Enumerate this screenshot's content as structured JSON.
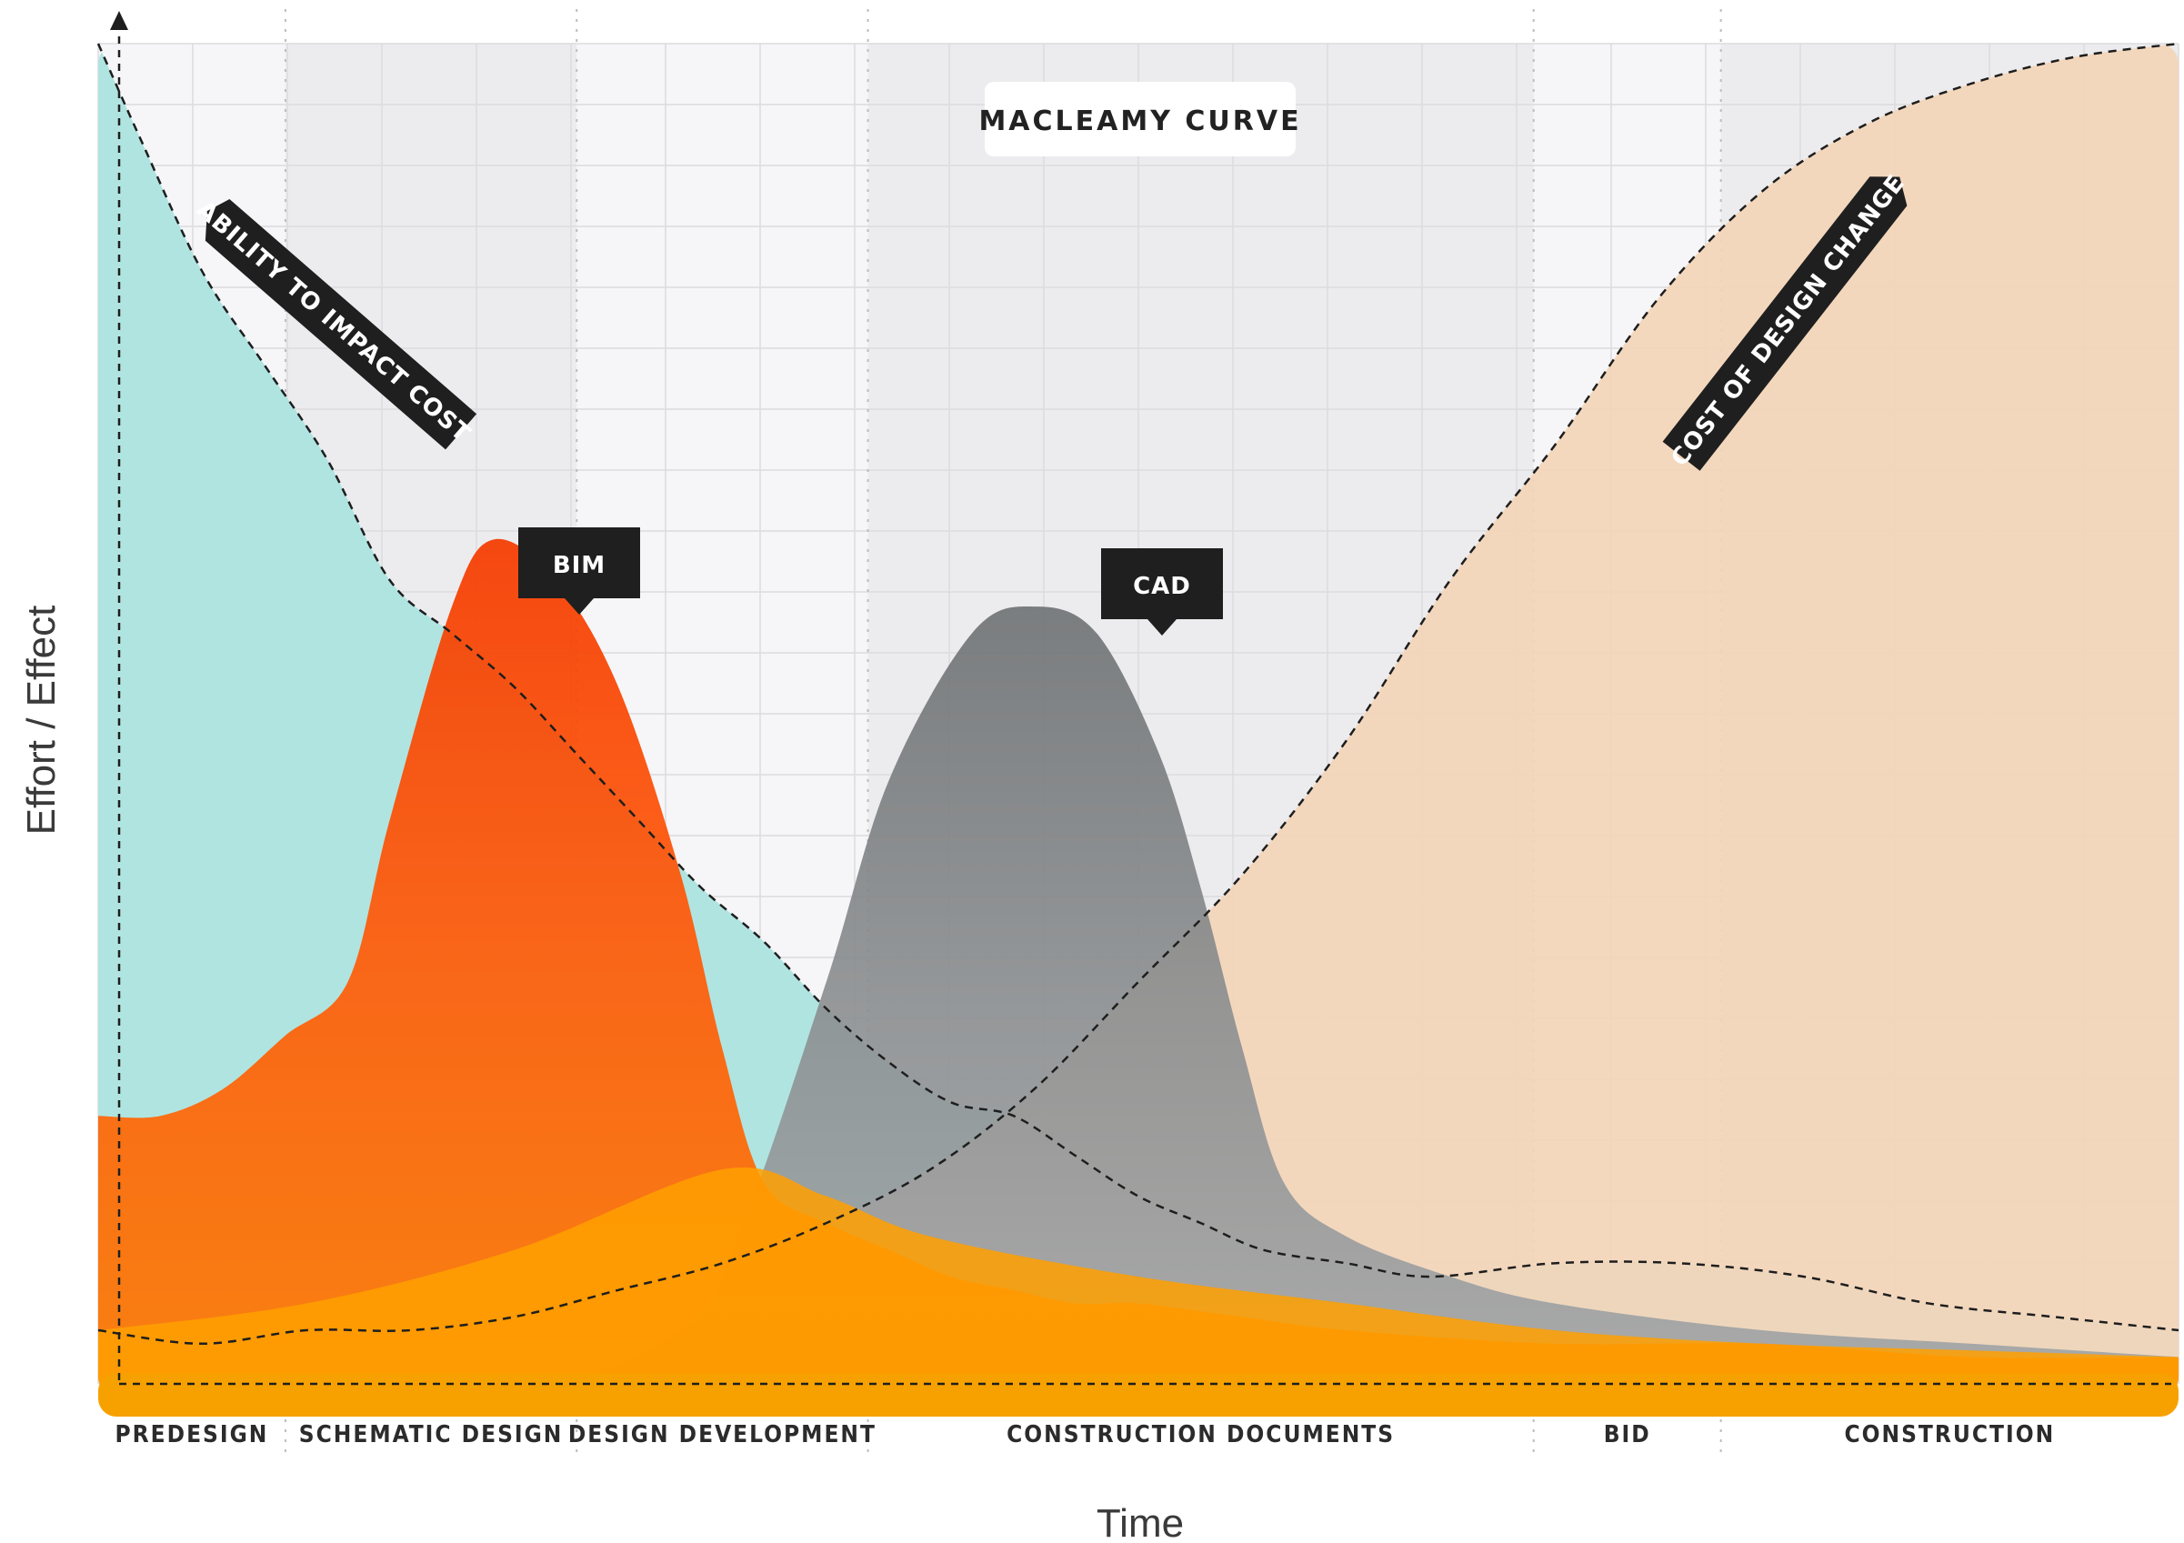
{
  "chart_data": {
    "type": "area",
    "title": "MACLEAMY CURVE",
    "xlabel": "Time",
    "ylabel": "Effort / Effect",
    "ylim": [
      0,
      100
    ],
    "phases": [
      "PREDESIGN",
      "SCHEMATIC DESIGN",
      "DESIGN DEVELOPMENT",
      "CONSTRUCTION DOCUMENTS",
      "BID",
      "CONSTRUCTION"
    ],
    "series": [
      {
        "name": "ABILITY TO IMPACT COST",
        "color": "#b0e4e1",
        "style": "dashed",
        "points": [
          [
            0,
            100
          ],
          [
            2,
            93
          ],
          [
            5,
            83
          ],
          [
            8,
            76
          ],
          [
            11,
            69
          ],
          [
            14,
            60
          ],
          [
            17,
            56
          ],
          [
            20,
            52
          ],
          [
            23,
            47
          ],
          [
            26,
            42
          ],
          [
            29,
            37
          ],
          [
            32,
            33
          ],
          [
            35,
            28
          ],
          [
            38,
            24
          ],
          [
            41,
            21
          ],
          [
            44,
            20
          ],
          [
            47,
            17
          ],
          [
            50,
            14
          ],
          [
            53,
            12
          ],
          [
            56,
            10
          ],
          [
            60,
            9
          ],
          [
            64,
            8
          ],
          [
            70,
            9
          ],
          [
            76,
            9
          ],
          [
            82,
            8
          ],
          [
            88,
            6
          ],
          [
            94,
            5
          ],
          [
            100,
            4
          ]
        ]
      },
      {
        "name": "BIM",
        "color": "#ff5a0a",
        "points": [
          [
            0,
            20
          ],
          [
            3,
            20
          ],
          [
            6,
            22
          ],
          [
            9,
            26
          ],
          [
            12,
            30
          ],
          [
            14,
            42
          ],
          [
            17,
            58
          ],
          [
            19,
            63
          ],
          [
            22,
            60
          ],
          [
            25,
            52
          ],
          [
            28,
            38
          ],
          [
            30,
            25
          ],
          [
            32,
            15
          ],
          [
            35,
            12
          ],
          [
            38,
            10
          ],
          [
            41,
            8
          ],
          [
            44,
            7
          ],
          [
            47,
            6
          ],
          [
            50,
            6
          ],
          [
            55,
            5
          ],
          [
            60,
            4
          ],
          [
            70,
            3
          ],
          [
            80,
            3
          ],
          [
            90,
            2
          ],
          [
            100,
            2
          ]
        ]
      },
      {
        "name": "CAD",
        "color": "#8c8f91",
        "points": [
          [
            0,
            0
          ],
          [
            20,
            0
          ],
          [
            28,
            4
          ],
          [
            31,
            12
          ],
          [
            35,
            30
          ],
          [
            38,
            45
          ],
          [
            42,
            56
          ],
          [
            45,
            58
          ],
          [
            48,
            56
          ],
          [
            51,
            47
          ],
          [
            53,
            37
          ],
          [
            55,
            25
          ],
          [
            57,
            15
          ],
          [
            60,
            11
          ],
          [
            65,
            8
          ],
          [
            70,
            6
          ],
          [
            80,
            4
          ],
          [
            90,
            3
          ],
          [
            100,
            2
          ]
        ]
      },
      {
        "name": "COST OF DESIGN CHANGE",
        "color": "#f3d5b8",
        "style": "dashed",
        "points": [
          [
            0,
            4
          ],
          [
            5,
            3
          ],
          [
            10,
            4
          ],
          [
            15,
            4
          ],
          [
            20,
            5
          ],
          [
            25,
            7
          ],
          [
            30,
            9
          ],
          [
            35,
            12
          ],
          [
            40,
            16
          ],
          [
            45,
            22
          ],
          [
            50,
            30
          ],
          [
            55,
            38
          ],
          [
            60,
            48
          ],
          [
            65,
            60
          ],
          [
            70,
            70
          ],
          [
            75,
            81
          ],
          [
            80,
            89
          ],
          [
            85,
            94
          ],
          [
            90,
            97
          ],
          [
            95,
            99
          ],
          [
            100,
            100
          ]
        ]
      }
    ],
    "labels": {
      "bim": "BIM",
      "cad": "CAD",
      "ability": "ABILITY TO IMPACT COST",
      "cost": "COST OF DESIGN CHANGE"
    }
  }
}
